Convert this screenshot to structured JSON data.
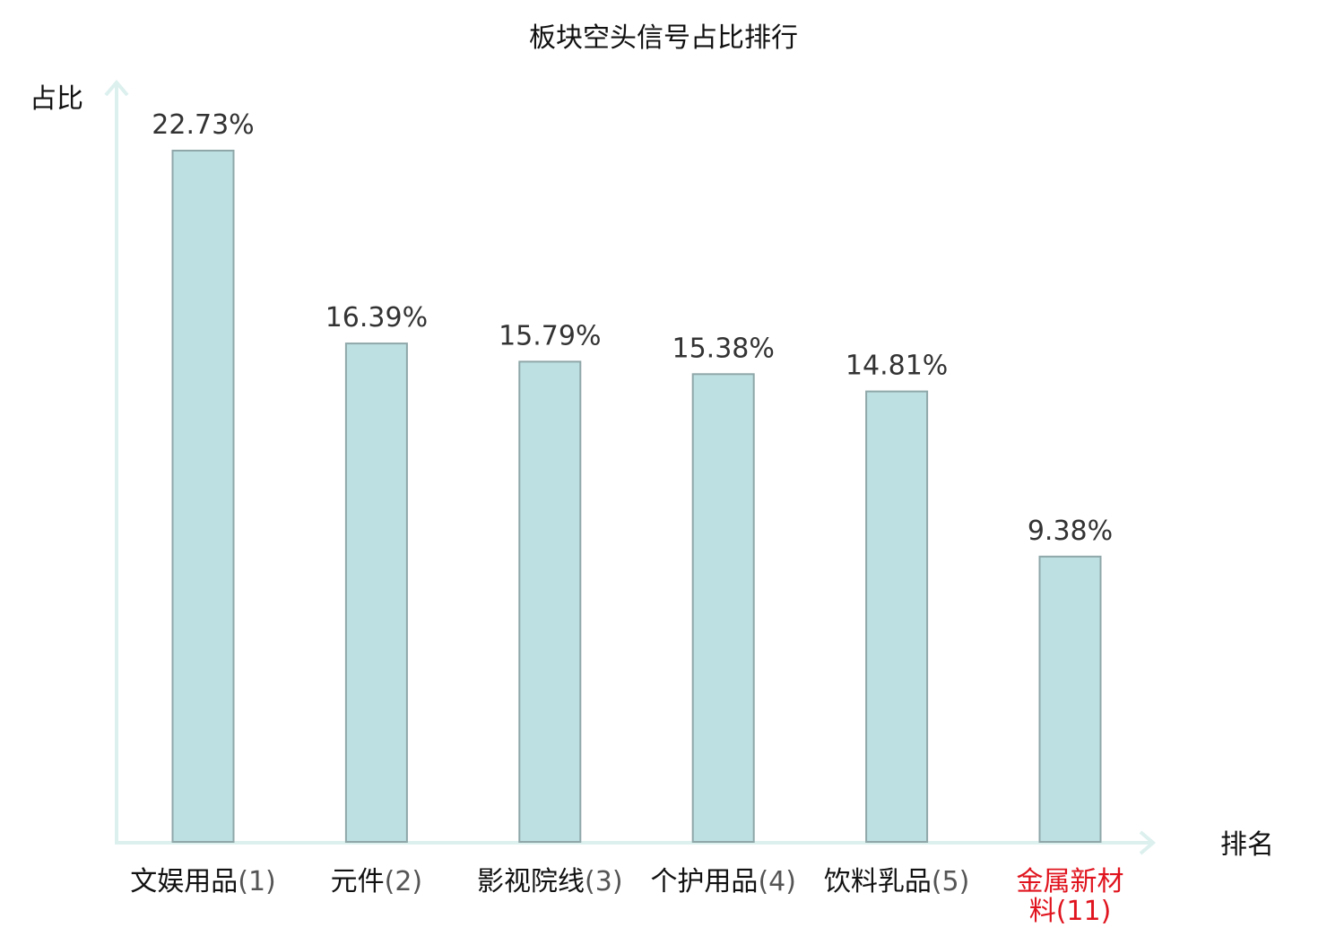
{
  "chart_data": {
    "type": "bar",
    "title": "板块空头信号占比排行",
    "ylabel": "占比",
    "xlabel": "排名",
    "categories": [
      {
        "name": "文娱用品",
        "rank": "(1)"
      },
      {
        "name": "元件",
        "rank": "(2)"
      },
      {
        "name": "影视院线",
        "rank": "(3)"
      },
      {
        "name": "个护用品",
        "rank": "(4)"
      },
      {
        "name": "饮料乳品",
        "rank": "(5)"
      },
      {
        "name": "金属新材料",
        "rank": "(11)"
      }
    ],
    "values": [
      22.73,
      16.39,
      15.79,
      15.38,
      14.81,
      9.38
    ],
    "value_labels": [
      "22.73%",
      "16.39%",
      "15.79%",
      "15.38%",
      "14.81%",
      "9.38%"
    ],
    "highlight_index": 5,
    "ylim": [
      0,
      22.73
    ],
    "grid": false,
    "colors": {
      "bar_fill": "#bde0e2",
      "bar_stroke": "#8fa7a9",
      "axis": "#dcf0ee",
      "text": "#333333",
      "category_text": "#111111",
      "rank_text": "#555555",
      "highlight": "#e0141e"
    }
  }
}
